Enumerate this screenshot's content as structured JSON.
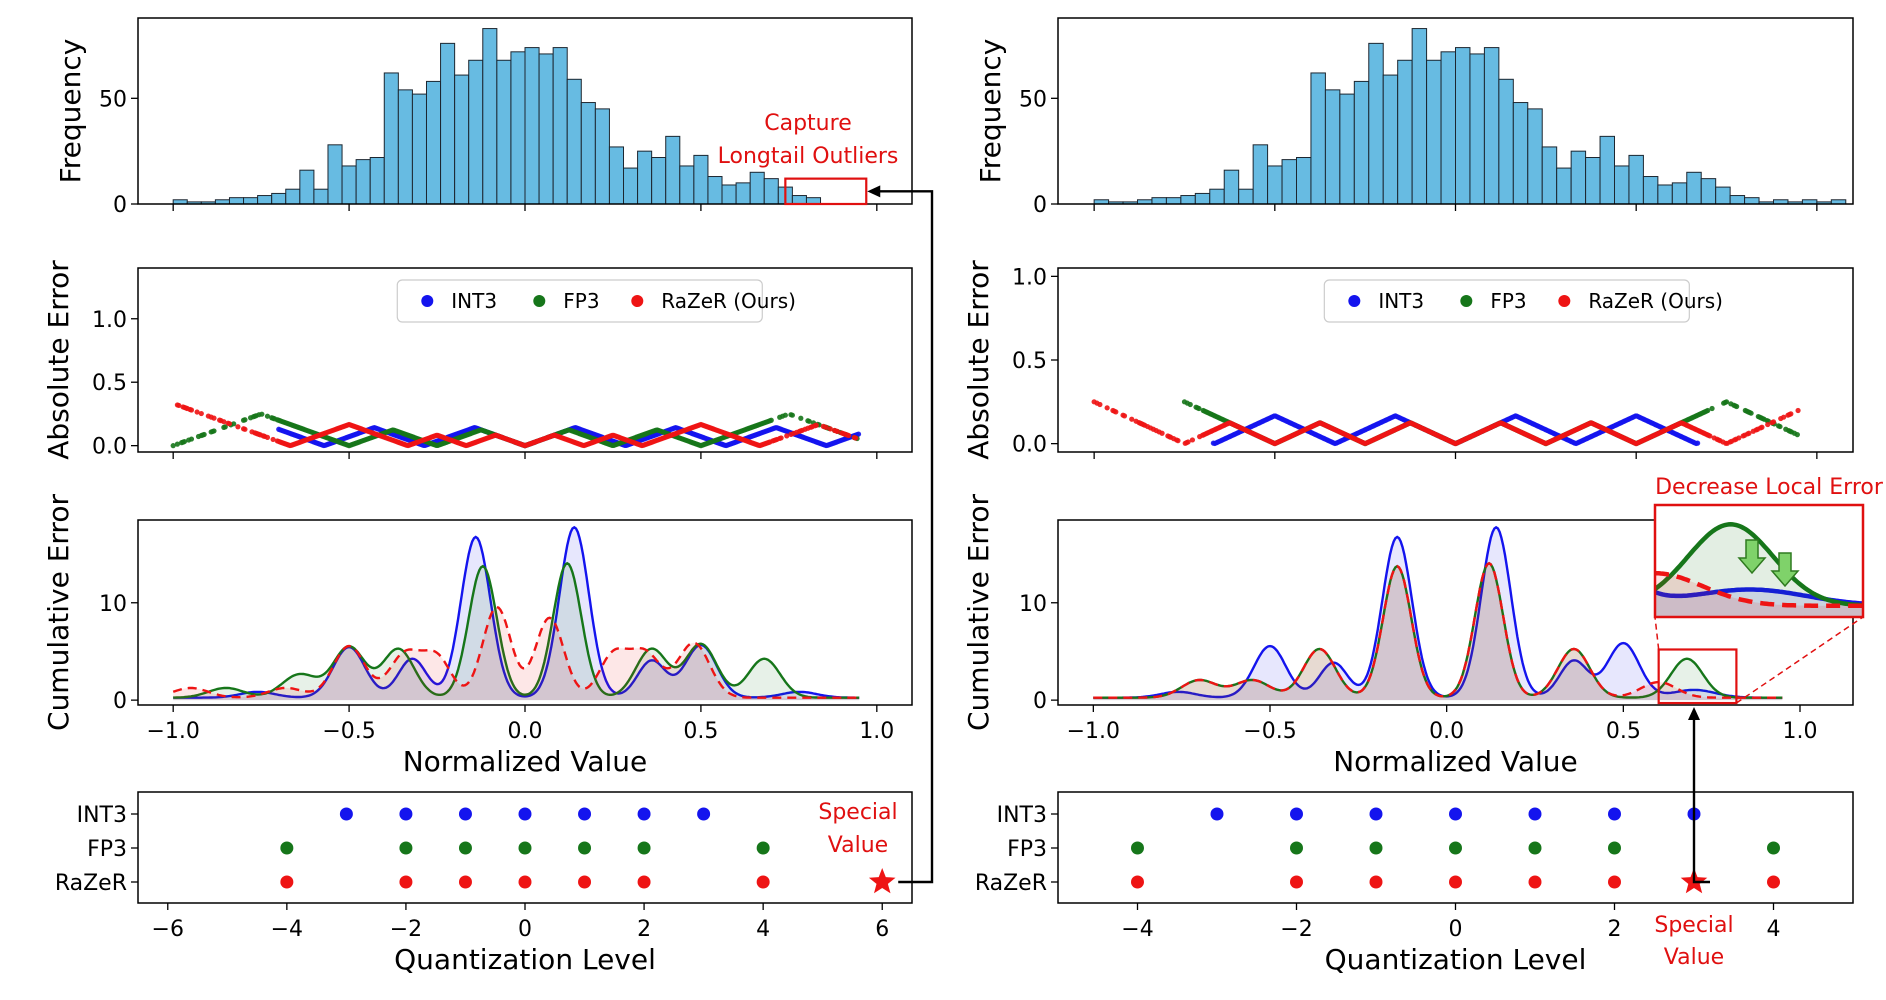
{
  "colors": {
    "int3": "#1414ee",
    "fp3": "#16761a",
    "razer": "#ee1414",
    "hist_fill": "#67bbe2",
    "annot": "#e01010"
  },
  "panels": {
    "left": {
      "hist": {
        "ylabel": "Frequency",
        "annotation": [
          "Capture",
          "Longtail Outliers"
        ]
      },
      "abs": {
        "ylabel": "Absolute Error"
      },
      "cum": {
        "ylabel": "Cumulative Error",
        "xlabel": "Normalized Value"
      },
      "levels": {
        "xlabel": "Quantization Level",
        "special_label": [
          "Special",
          "Value"
        ]
      }
    },
    "right": {
      "hist": {
        "ylabel": "Frequency"
      },
      "abs": {
        "ylabel": "Absolute Error"
      },
      "cum": {
        "ylabel": "Cumulative Error",
        "xlabel": "Normalized Value",
        "inset_title": "Decrease Local Error"
      },
      "levels": {
        "xlabel": "Quantization Level",
        "special_label": [
          "Special",
          "Value"
        ]
      }
    }
  },
  "chart_data": [
    {
      "id": "left-hist",
      "type": "bar",
      "ylabel": "Frequency",
      "xlim": [
        -1.1,
        1.1
      ],
      "ylim": [
        0,
        88
      ],
      "yticks": [
        0,
        50
      ],
      "bin_start": -1.0,
      "bin_width": 0.04,
      "values": [
        2,
        1,
        1,
        2,
        3,
        3,
        4,
        5,
        7,
        16,
        7,
        28,
        18,
        21,
        22,
        62,
        54,
        52,
        58,
        76,
        61,
        68,
        83,
        68,
        72,
        74,
        71,
        74,
        59,
        48,
        45,
        27,
        17,
        25,
        22,
        32,
        18,
        23,
        13,
        9,
        10,
        15,
        12,
        8,
        4,
        3,
        1,
        2,
        1,
        2,
        1,
        2
      ],
      "skip_bins": [
        46,
        47,
        48,
        49,
        50,
        51
      ],
      "highlight_box": {
        "x": [
          0.74,
          0.97
        ],
        "y": [
          0,
          12
        ]
      }
    },
    {
      "id": "left-abs",
      "type": "scatter",
      "ylabel": "Absolute Error",
      "xlim": [
        -1.1,
        1.1
      ],
      "ylim": [
        -0.05,
        1.4
      ],
      "yticks": [
        0.0,
        0.5,
        1.0
      ],
      "legend": {
        "entries": [
          "INT3",
          "FP3",
          "RaZeR (Ours)"
        ],
        "loc": "upper center"
      },
      "series": [
        {
          "name": "INT3",
          "levels": [
            -0.857,
            -0.571,
            -0.286,
            0.0,
            0.286,
            0.571,
            0.857
          ],
          "range": [
            -0.7,
            0.95
          ]
        },
        {
          "name": "FP3",
          "levels": [
            -1.0,
            -0.5,
            -0.25,
            0.0,
            0.25,
            0.5,
            1.0
          ],
          "range": [
            -1.0,
            0.95
          ]
        },
        {
          "name": "RaZeR (Ours)",
          "levels": [
            -0.667,
            -0.333,
            -0.167,
            0.0,
            0.167,
            0.333,
            0.667,
            1.0
          ],
          "range": [
            -1.0,
            0.95
          ]
        }
      ]
    },
    {
      "id": "left-cum",
      "type": "area",
      "ylabel": "Cumulative Error",
      "xlabel": "Normalized Value",
      "xlim": [
        -1.1,
        1.1
      ],
      "ylim": [
        -0.5,
        18.5
      ],
      "xticks": [
        -1.0,
        -0.5,
        0.0,
        0.5,
        1.0
      ],
      "yticks": [
        0,
        10
      ],
      "series": [
        {
          "name": "INT3",
          "peaks": [
            [
              -0.5,
              5.2,
              0.045
            ],
            [
              -0.32,
              4.0,
              0.04
            ],
            [
              -0.14,
              16.5,
              0.042
            ],
            [
              0.14,
              17.5,
              0.042
            ],
            [
              0.36,
              3.8,
              0.04
            ],
            [
              0.5,
              5.4,
              0.045
            ],
            [
              -0.76,
              0.6,
              0.05
            ],
            [
              0.78,
              0.6,
              0.05
            ]
          ]
        },
        {
          "name": "FP3",
          "peaks": [
            [
              -0.64,
              2.4,
              0.05
            ],
            [
              -0.5,
              5.2,
              0.045
            ],
            [
              -0.36,
              5.0,
              0.045
            ],
            [
              -0.12,
              13.5,
              0.04
            ],
            [
              0.12,
              13.8,
              0.04
            ],
            [
              0.36,
              5.0,
              0.045
            ],
            [
              0.5,
              5.5,
              0.045
            ],
            [
              0.68,
              4.0,
              0.045
            ],
            [
              -0.85,
              1.0,
              0.05
            ]
          ]
        },
        {
          "name": "RaZeR (Ours)",
          "peaks": [
            [
              -0.5,
              5.3,
              0.045
            ],
            [
              -0.34,
              4.5,
              0.045
            ],
            [
              -0.25,
              4.0,
              0.04
            ],
            [
              -0.08,
              9.3,
              0.04
            ],
            [
              0.07,
              8.2,
              0.04
            ],
            [
              0.25,
              4.2,
              0.04
            ],
            [
              0.34,
              4.6,
              0.045
            ],
            [
              0.48,
              5.6,
              0.045
            ],
            [
              -0.95,
              1.0,
              0.05
            ],
            [
              -0.68,
              1.0,
              0.05
            ]
          ]
        }
      ]
    },
    {
      "id": "left-levels",
      "type": "scatter",
      "xlabel": "Quantization Level",
      "xlim": [
        -6.5,
        6.5
      ],
      "xticks": [
        -6,
        -4,
        -2,
        0,
        2,
        4,
        6
      ],
      "categories": [
        "INT3",
        "FP3",
        "RaZeR"
      ],
      "series": [
        {
          "name": "INT3",
          "values": [
            -3,
            -2,
            -1,
            0,
            1,
            2,
            3
          ]
        },
        {
          "name": "FP3",
          "values": [
            -4,
            -2,
            -1,
            0,
            1,
            2,
            4
          ]
        },
        {
          "name": "RaZeR",
          "values": [
            -4,
            -2,
            -1,
            0,
            1,
            2,
            4
          ],
          "special": 6
        }
      ]
    },
    {
      "id": "right-hist",
      "type": "bar",
      "ylabel": "Frequency",
      "xlim": [
        -1.1,
        1.1
      ],
      "ylim": [
        0,
        88
      ],
      "yticks": [
        0,
        50
      ],
      "bin_start": -1.0,
      "bin_width": 0.04,
      "values": [
        2,
        1,
        1,
        2,
        3,
        3,
        4,
        5,
        7,
        16,
        7,
        28,
        18,
        21,
        22,
        62,
        54,
        52,
        58,
        76,
        61,
        68,
        83,
        68,
        72,
        74,
        71,
        74,
        59,
        48,
        45,
        27,
        17,
        25,
        22,
        32,
        18,
        23,
        13,
        9,
        10,
        15,
        12,
        8,
        4,
        3,
        1,
        2,
        1,
        2,
        1,
        2
      ]
    },
    {
      "id": "right-abs",
      "type": "scatter",
      "ylabel": "Absolute Error",
      "xlim": [
        -1.1,
        1.1
      ],
      "ylim": [
        -0.05,
        1.05
      ],
      "yticks": [
        0.0,
        0.5,
        1.0
      ],
      "legend": {
        "entries": [
          "INT3",
          "FP3",
          "RaZeR (Ours)"
        ],
        "loc": "upper center"
      },
      "series": [
        {
          "name": "INT3",
          "levels": [
            -0.667,
            -0.333,
            0.0,
            0.333,
            0.667
          ],
          "range": [
            -0.67,
            0.67
          ]
        },
        {
          "name": "FP3",
          "levels": [
            -1.0,
            -0.5,
            -0.25,
            0.0,
            0.25,
            0.5,
            1.0
          ],
          "range": [
            -0.75,
            0.95
          ]
        },
        {
          "name": "RaZeR (Ours)",
          "levels": [
            -0.75,
            -0.5,
            -0.25,
            0.0,
            0.25,
            0.5,
            0.75
          ],
          "range": [
            -1.0,
            0.95
          ]
        }
      ]
    },
    {
      "id": "right-cum",
      "type": "area",
      "ylabel": "Cumulative Error",
      "xlabel": "Normalized Value",
      "xlim": [
        -1.1,
        1.15
      ],
      "ylim": [
        -0.5,
        18.5
      ],
      "xticks": [
        -1.0,
        -0.5,
        0.0,
        0.5,
        1.0
      ],
      "yticks": [
        0,
        10
      ],
      "series": [
        {
          "name": "INT3",
          "peaks": [
            [
              -0.5,
              5.3,
              0.045
            ],
            [
              -0.32,
              3.6,
              0.04
            ],
            [
              -0.14,
              16.5,
              0.042
            ],
            [
              0.14,
              17.5,
              0.042
            ],
            [
              0.36,
              3.8,
              0.04
            ],
            [
              0.5,
              5.6,
              0.045
            ],
            [
              -0.76,
              0.6,
              0.05
            ],
            [
              0.7,
              0.8,
              0.06
            ]
          ]
        },
        {
          "name": "FP3",
          "peaks": [
            [
              -0.14,
              13.5,
              0.04
            ],
            [
              0.12,
              13.8,
              0.04
            ],
            [
              -0.36,
              5.0,
              0.045
            ],
            [
              0.36,
              5.0,
              0.045
            ],
            [
              -0.55,
              1.8,
              0.05
            ],
            [
              -0.7,
              1.8,
              0.05
            ],
            [
              0.68,
              4.0,
              0.045
            ]
          ]
        },
        {
          "name": "RaZeR (Ours)",
          "peaks": [
            [
              -0.14,
              13.5,
              0.04
            ],
            [
              0.12,
              13.8,
              0.04
            ],
            [
              -0.36,
              5.0,
              0.045
            ],
            [
              0.36,
              5.0,
              0.045
            ],
            [
              -0.55,
              1.8,
              0.05
            ],
            [
              -0.7,
              1.8,
              0.05
            ],
            [
              0.6,
              1.6,
              0.05
            ]
          ]
        }
      ]
    },
    {
      "id": "right-levels",
      "type": "scatter",
      "xlabel": "Quantization Level",
      "xlim": [
        -5,
        5
      ],
      "xticks": [
        -4,
        -2,
        0,
        2,
        4
      ],
      "categories": [
        "INT3",
        "FP3",
        "RaZeR"
      ],
      "series": [
        {
          "name": "INT3",
          "values": [
            -3,
            -2,
            -1,
            0,
            1,
            2,
            3
          ]
        },
        {
          "name": "FP3",
          "values": [
            -4,
            -2,
            -1,
            0,
            1,
            2,
            4
          ]
        },
        {
          "name": "RaZeR",
          "values": [
            -4,
            -2,
            -1,
            0,
            1,
            2,
            4
          ],
          "special": 3
        }
      ]
    }
  ]
}
